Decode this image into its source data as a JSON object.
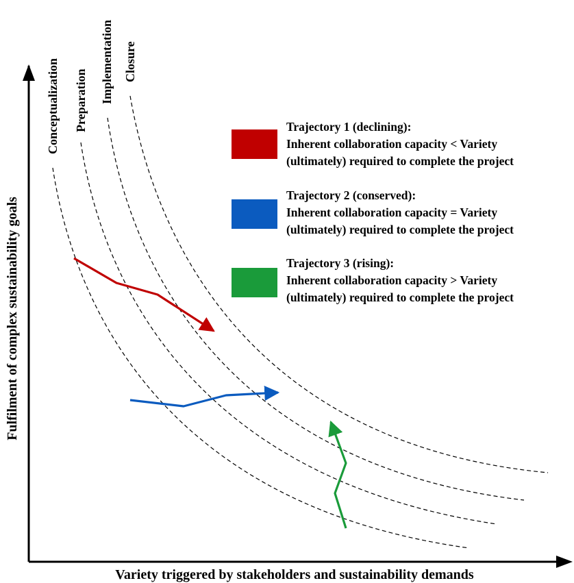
{
  "axes": {
    "x_label": "Variety triggered by stakeholders and sustainability demands",
    "y_label": "Fulfilment of complex sustainability goals"
  },
  "phases": [
    {
      "id": "conceptualization",
      "label": "Conceptualization"
    },
    {
      "id": "preparation",
      "label": "Preparation"
    },
    {
      "id": "implementation",
      "label": "Implementation"
    },
    {
      "id": "closure",
      "label": "Closure"
    }
  ],
  "legend": [
    {
      "id": "trajectory-1",
      "color": "#c00000",
      "title": "Trajectory 1 (declining):",
      "line2": "Inherent collaboration capacity < Variety",
      "line3": "(ultimately) required to complete the project"
    },
    {
      "id": "trajectory-2",
      "color": "#0b5bbf",
      "title": "Trajectory 2 (conserved):",
      "line2": "Inherent collaboration capacity = Variety",
      "line3": "(ultimately) required to complete the project"
    },
    {
      "id": "trajectory-3",
      "color": "#1a9b3a",
      "title": "Trajectory 3 (rising):",
      "line2": "Inherent collaboration capacity > Variety",
      "line3": "(ultimately) required to complete the project"
    }
  ]
}
